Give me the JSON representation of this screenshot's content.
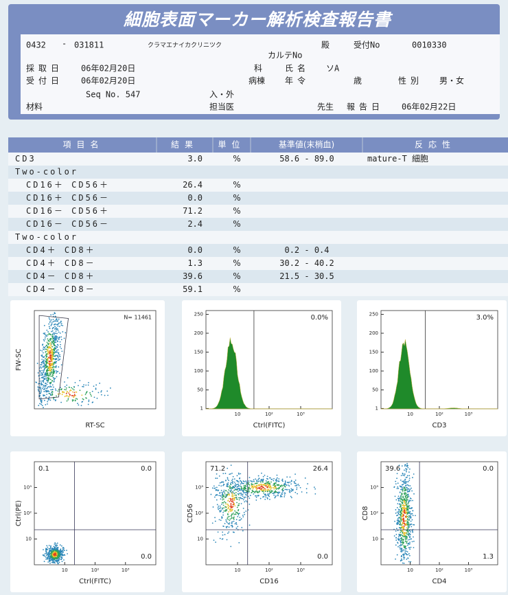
{
  "header": {
    "title": "細胞表面マーカー解析検査報告書",
    "fields": [
      "0432",
      "-",
      "031811",
      "クラマエナイカクリニツク",
      "殿",
      "受付No",
      "0010330",
      "カルテNo",
      "採取日",
      "06年02月20日",
      "科",
      "氏名",
      "ソA",
      "受付日",
      "06年02月20日",
      "病棟",
      "年令",
      "歳",
      "性別",
      "男・女",
      "Seq No. 547",
      "入・外",
      "材料",
      "担当医",
      "先生",
      "報告日",
      "06年02月22日"
    ]
  },
  "table": {
    "headers": [
      "項目名",
      "結果",
      "単位",
      "基準値(末梢血)",
      "反応性"
    ],
    "rows": [
      {
        "name": "CD3",
        "result": "3.0",
        "unit": "%",
        "reference": "58.6 - 89.0",
        "reaction": "mature-T 細胞"
      },
      {
        "name": "Two-color"
      },
      {
        "name": "CD16＋ CD56＋",
        "result": "26.4",
        "unit": "%"
      },
      {
        "name": "CD16＋ CD56－",
        "result": "0.0",
        "unit": "%"
      },
      {
        "name": "CD16－ CD56＋",
        "result": "71.2",
        "unit": "%"
      },
      {
        "name": "CD16－ CD56－",
        "result": "2.4",
        "unit": "%"
      },
      {
        "name": "Two-color"
      },
      {
        "name": "CD4＋ CD8＋",
        "result": "0.0",
        "unit": "%",
        "reference": "0.2 - 0.4"
      },
      {
        "name": "CD4＋ CD8－",
        "result": "1.3",
        "unit": "%",
        "reference": "30.2 - 40.2"
      },
      {
        "name": "CD4－ CD8＋",
        "result": "39.6",
        "unit": "%",
        "reference": "21.5 - 30.5"
      },
      {
        "name": "CD4－ CD8－",
        "result": "59.1",
        "unit": "%"
      }
    ]
  },
  "plots": [
    {
      "kind": "gate",
      "xlabel": "RT-SC",
      "ylabel": "FW-SC",
      "annotations": [
        {
          "text": "N= 11461",
          "position": "top-right"
        }
      ]
    },
    {
      "kind": "histogram",
      "xlabel": "Ctrl(FITC)",
      "annotations": [
        {
          "text": "0.0%",
          "position": "top-right"
        }
      ],
      "xscale": "log",
      "xlim": [
        1,
        10000
      ],
      "xticks": [
        10,
        {
          "value": 100,
          "label": "10²"
        },
        {
          "value": 1000,
          "label": "10³"
        }
      ],
      "ylim": [
        0,
        260
      ],
      "yticks": [
        1,
        50,
        100,
        150,
        200,
        250
      ]
    },
    {
      "kind": "histogram",
      "xlabel": "CD3",
      "annotations": [
        {
          "text": "3.0%",
          "position": "top-right"
        }
      ],
      "xscale": "log",
      "xlim": [
        1,
        10000
      ],
      "xticks": [
        10,
        {
          "value": 100,
          "label": "10²"
        },
        {
          "value": 1000,
          "label": "10³"
        }
      ],
      "ylim": [
        0,
        260
      ],
      "yticks": [
        1,
        50,
        100,
        150,
        200,
        250
      ]
    },
    {
      "kind": "quadrant",
      "xlabel": "Ctrl(FITC)",
      "ylabel": "Ctrl(PE)",
      "annotations": [
        {
          "text": "0.1",
          "position": "top-left"
        },
        {
          "text": "0.0",
          "position": "top-right"
        },
        {
          "text": "0.0",
          "position": "bottom-right"
        }
      ],
      "xscale": "log",
      "yscale": "log",
      "xlim": [
        1,
        10000
      ],
      "ylim": [
        1,
        10000
      ],
      "xticks": [
        10,
        {
          "value": 100,
          "label": "10²"
        },
        {
          "value": 1000,
          "label": "10³"
        }
      ],
      "yticks": [
        10,
        {
          "value": 100,
          "label": "10²"
        },
        {
          "value": 1000,
          "label": "10³"
        }
      ]
    },
    {
      "kind": "quadrant",
      "xlabel": "CD16",
      "ylabel": "CD56",
      "annotations": [
        {
          "text": "71.2",
          "position": "top-left"
        },
        {
          "text": "26.4",
          "position": "top-right"
        },
        {
          "text": "0.0",
          "position": "bottom-right"
        }
      ],
      "xscale": "log",
      "yscale": "log",
      "xlim": [
        1,
        10000
      ],
      "ylim": [
        1,
        10000
      ],
      "xticks": [
        10,
        {
          "value": 100,
          "label": "10²"
        },
        {
          "value": 1000,
          "label": "10³"
        }
      ],
      "yticks": [
        10,
        {
          "value": 100,
          "label": "10²"
        },
        {
          "value": 1000,
          "label": "10³"
        }
      ]
    },
    {
      "kind": "quadrant",
      "xlabel": "CD4",
      "ylabel": "CD8",
      "annotations": [
        {
          "text": "39.6",
          "position": "top-left"
        },
        {
          "text": "0.0",
          "position": "top-right"
        },
        {
          "text": "1.3",
          "position": "bottom-right"
        }
      ],
      "xscale": "log",
      "yscale": "log",
      "xlim": [
        1,
        10000
      ],
      "ylim": [
        1,
        10000
      ],
      "xticks": [
        10,
        {
          "value": 100,
          "label": "10²"
        },
        {
          "value": 1000,
          "label": "10³"
        }
      ],
      "yticks": [
        10,
        {
          "value": 100,
          "label": "10²"
        },
        {
          "value": 1000,
          "label": "10³"
        }
      ]
    }
  ]
}
